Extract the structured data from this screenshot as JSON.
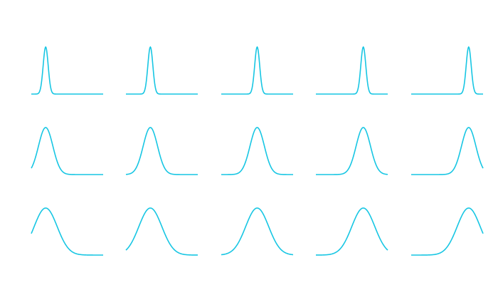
{
  "chart_data": [
    {
      "type": "gaussian",
      "mu": -0.6,
      "sigma": 0.07,
      "color": "#17c6e3",
      "xlim": [
        -1,
        1
      ],
      "ylim": [
        0,
        1
      ]
    },
    {
      "type": "gaussian",
      "mu": -0.32,
      "sigma": 0.07,
      "color": "#17c6e3",
      "xlim": [
        -1,
        1
      ],
      "ylim": [
        0,
        1
      ]
    },
    {
      "type": "gaussian",
      "mu": 0,
      "sigma": 0.07,
      "color": "#17c6e3",
      "xlim": [
        -1,
        1
      ],
      "ylim": [
        0,
        1
      ]
    },
    {
      "type": "gaussian",
      "mu": 0.32,
      "sigma": 0.07,
      "color": "#17c6e3",
      "xlim": [
        -1,
        1
      ],
      "ylim": [
        0,
        1
      ]
    },
    {
      "type": "gaussian",
      "mu": 0.6,
      "sigma": 0.07,
      "color": "#17c6e3",
      "xlim": [
        -1,
        1
      ],
      "ylim": [
        0,
        1
      ]
    },
    {
      "type": "gaussian",
      "mu": -0.6,
      "sigma": 0.2,
      "color": "#17c6e3",
      "xlim": [
        -1,
        1
      ],
      "ylim": [
        0,
        1
      ]
    },
    {
      "type": "gaussian",
      "mu": -0.32,
      "sigma": 0.2,
      "color": "#17c6e3",
      "xlim": [
        -1,
        1
      ],
      "ylim": [
        0,
        1
      ]
    },
    {
      "type": "gaussian",
      "mu": 0,
      "sigma": 0.2,
      "color": "#17c6e3",
      "xlim": [
        -1,
        1
      ],
      "ylim": [
        0,
        1
      ]
    },
    {
      "type": "gaussian",
      "mu": 0.32,
      "sigma": 0.2,
      "color": "#17c6e3",
      "xlim": [
        -1,
        1
      ],
      "ylim": [
        0,
        1
      ]
    },
    {
      "type": "gaussian",
      "mu": 0.6,
      "sigma": 0.2,
      "color": "#17c6e3",
      "xlim": [
        -1,
        1
      ],
      "ylim": [
        0,
        1
      ]
    },
    {
      "type": "gaussian",
      "mu": -0.6,
      "sigma": 0.32,
      "color": "#17c6e3",
      "xlim": [
        -1,
        1
      ],
      "ylim": [
        0,
        1
      ]
    },
    {
      "type": "gaussian",
      "mu": -0.32,
      "sigma": 0.32,
      "color": "#17c6e3",
      "xlim": [
        -1,
        1
      ],
      "ylim": [
        0,
        1
      ]
    },
    {
      "type": "gaussian",
      "mu": 0,
      "sigma": 0.32,
      "color": "#17c6e3",
      "xlim": [
        -1,
        1
      ],
      "ylim": [
        0,
        1
      ]
    },
    {
      "type": "gaussian",
      "mu": 0.32,
      "sigma": 0.32,
      "color": "#17c6e3",
      "xlim": [
        -1,
        1
      ],
      "ylim": [
        0,
        1
      ]
    },
    {
      "type": "gaussian",
      "mu": 0.6,
      "sigma": 0.32,
      "color": "#17c6e3",
      "xlim": [
        -1,
        1
      ],
      "ylim": [
        0,
        1
      ]
    }
  ]
}
